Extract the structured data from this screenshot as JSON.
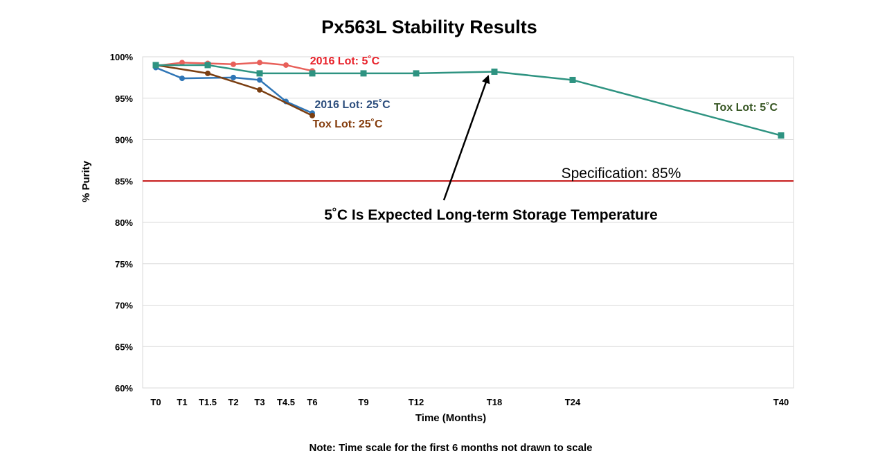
{
  "chart_data": {
    "type": "line",
    "title": "Px563L Stability Results",
    "xlabel": "Time (Months)",
    "ylabel": "% Purity",
    "categories": [
      "T0",
      "T1",
      "T1.5",
      "T2",
      "T3",
      "T4.5",
      "T6",
      "T9",
      "T12",
      "T18",
      "T24",
      "T40"
    ],
    "ylim": [
      60,
      100
    ],
    "y_ticks": [
      "60%",
      "65%",
      "70%",
      "75%",
      "80%",
      "85%",
      "90%",
      "95%",
      "100%"
    ],
    "grid": true,
    "series": [
      {
        "name": "2016 Lot: 5˚C",
        "color": "#e8605a",
        "marker": "circle",
        "values": [
          98.9,
          99.3,
          99.2,
          99.1,
          99.3,
          99.0,
          98.3,
          null,
          null,
          null,
          null,
          null
        ]
      },
      {
        "name": "2016 Lot: 25˚C",
        "color": "#2e75b6",
        "marker": "circle",
        "values": [
          98.7,
          97.4,
          null,
          97.5,
          97.2,
          94.6,
          93.2,
          null,
          null,
          null,
          null,
          null
        ]
      },
      {
        "name": "Tox Lot: 25˚C",
        "color": "#7b3f12",
        "marker": "circle",
        "values": [
          99.0,
          null,
          98.0,
          null,
          96.0,
          null,
          92.9,
          null,
          null,
          null,
          null,
          null
        ]
      },
      {
        "name": "Tox Lot: 5˚C",
        "color": "#2e9381",
        "marker": "square",
        "values": [
          99.0,
          null,
          99.0,
          null,
          98.0,
          null,
          98.0,
          98.0,
          98.0,
          98.2,
          97.2,
          90.5
        ]
      }
    ],
    "series_label_colors": {
      "2016 Lot: 5˚C": "#e8212a",
      "2016 Lot: 25˚C": "#2e4f7e",
      "Tox Lot: 25˚C": "#843c0c",
      "Tox Lot: 5˚C": "#375623"
    },
    "reference_line": {
      "value": 85,
      "label": "Specification: 85%",
      "color": "#c00000"
    },
    "annotations": [
      {
        "text": "5˚C Is Expected Long-term Storage Temperature",
        "arrow_to": "T18"
      }
    ],
    "note": "Note: Time scale for the first 6 months not drawn to scale"
  }
}
